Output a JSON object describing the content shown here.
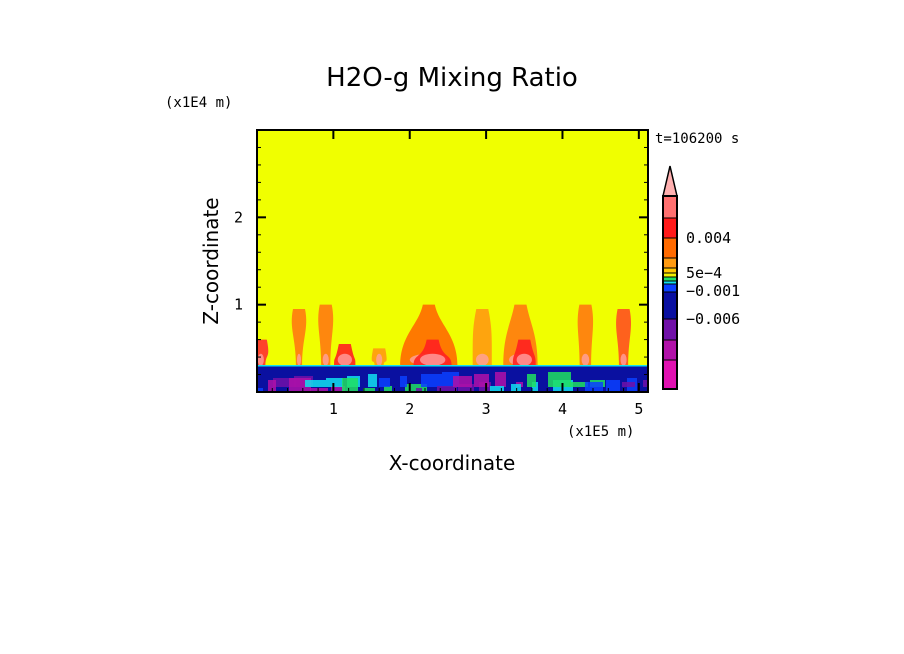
{
  "chart_data": {
    "type": "heatmap",
    "title": "H2O-g Mixing Ratio",
    "xlabel": "X-coordinate",
    "ylabel": "Z-coordinate",
    "x_unit": "(x1E5 m)",
    "y_unit": "(x1E4 m)",
    "time_label": "t=106200 s",
    "xlim": [
      0,
      5.12
    ],
    "ylim": [
      0,
      3
    ],
    "xticks": [
      1,
      2,
      3,
      4,
      5
    ],
    "yticks": [
      1,
      2
    ],
    "background_color": "#f0ff00",
    "boundary_layer_top": 0.3,
    "plumes": [
      {
        "x": 0.05,
        "top": 0.6,
        "width": 0.12,
        "color": "#ff3030"
      },
      {
        "x": 0.55,
        "top": 0.95,
        "width": 0.08,
        "color": "#ff7a10"
      },
      {
        "x": 0.9,
        "top": 1.0,
        "width": 0.12,
        "color": "#ff7a10"
      },
      {
        "x": 1.15,
        "top": 0.55,
        "width": 0.28,
        "color": "#ff2020"
      },
      {
        "x": 1.6,
        "top": 0.5,
        "width": 0.12,
        "color": "#ff9a10"
      },
      {
        "x": 2.25,
        "top": 1.0,
        "width": 0.75,
        "color": "#ff6a00"
      },
      {
        "x": 2.3,
        "top": 0.6,
        "width": 0.5,
        "color": "#ff2020"
      },
      {
        "x": 2.95,
        "top": 0.95,
        "width": 0.25,
        "color": "#ff9a10"
      },
      {
        "x": 3.45,
        "top": 1.0,
        "width": 0.45,
        "color": "#ff7a10"
      },
      {
        "x": 3.5,
        "top": 0.6,
        "width": 0.3,
        "color": "#ff2020"
      },
      {
        "x": 4.3,
        "top": 1.0,
        "width": 0.15,
        "color": "#ff7a10"
      },
      {
        "x": 4.8,
        "top": 0.95,
        "width": 0.12,
        "color": "#ff5020"
      }
    ],
    "colorbar": {
      "colors": [
        "#ffb0b0",
        "#ff7070",
        "#ff1a1a",
        "#ff6a00",
        "#ff9a10",
        "#ffc800",
        "#f0f000",
        "#20e060",
        "#10e0f0",
        "#0a40ff",
        "#0a10a0",
        "#7010a8",
        "#b010a8",
        "#e010b0"
      ],
      "labels": [
        {
          "text": "0.004",
          "level": 3
        },
        {
          "text": "5e-4",
          "level": 6
        },
        {
          "text": "-0.001",
          "level": 8
        },
        {
          "text": "-0.006",
          "level": 11
        }
      ]
    }
  }
}
